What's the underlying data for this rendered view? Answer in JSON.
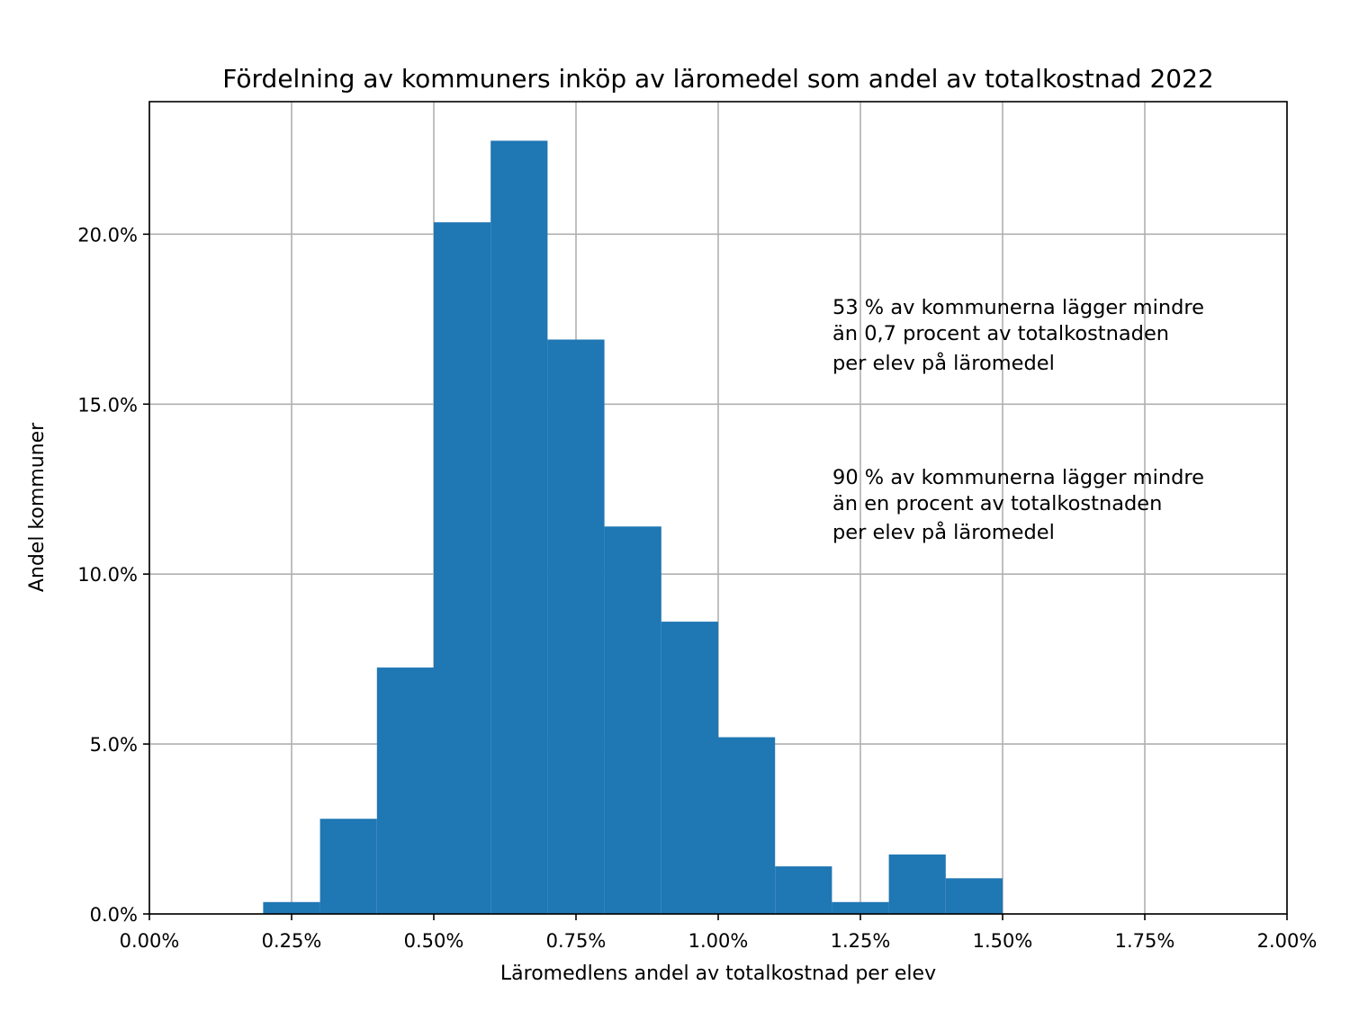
{
  "chart_data": {
    "type": "bar",
    "title": "Fördelning av kommuners inköp av läromedel som andel av totalkostnad 2022",
    "xlabel": "Läromedlens andel av totalkostnad per elev",
    "ylabel": "Andel kommuner",
    "xlim": [
      0.0,
      2.0
    ],
    "ylim": [
      0.0,
      23.9
    ],
    "grid": true,
    "bar_color": "#1f77b4",
    "x_ticks": [
      {
        "value": 0.0,
        "label": "0.00%"
      },
      {
        "value": 0.25,
        "label": "0.25%"
      },
      {
        "value": 0.5,
        "label": "0.50%"
      },
      {
        "value": 0.75,
        "label": "0.75%"
      },
      {
        "value": 1.0,
        "label": "1.00%"
      },
      {
        "value": 1.25,
        "label": "1.25%"
      },
      {
        "value": 1.5,
        "label": "1.50%"
      },
      {
        "value": 1.75,
        "label": "1.75%"
      },
      {
        "value": 2.0,
        "label": "2.00%"
      }
    ],
    "y_ticks": [
      {
        "value": 0,
        "label": "0.0%"
      },
      {
        "value": 5,
        "label": "5.0%"
      },
      {
        "value": 10,
        "label": "10.0%"
      },
      {
        "value": 15,
        "label": "15.0%"
      },
      {
        "value": 20,
        "label": "20.0%"
      }
    ],
    "bins": [
      {
        "start": 0.2,
        "end": 0.3,
        "value": 0.35
      },
      {
        "start": 0.3,
        "end": 0.4,
        "value": 2.8
      },
      {
        "start": 0.4,
        "end": 0.5,
        "value": 7.25
      },
      {
        "start": 0.5,
        "end": 0.6,
        "value": 20.35
      },
      {
        "start": 0.6,
        "end": 0.7,
        "value": 22.75
      },
      {
        "start": 0.7,
        "end": 0.8,
        "value": 16.9
      },
      {
        "start": 0.8,
        "end": 0.9,
        "value": 11.4
      },
      {
        "start": 0.9,
        "end": 1.0,
        "value": 8.6
      },
      {
        "start": 1.0,
        "end": 1.1,
        "value": 5.2
      },
      {
        "start": 1.1,
        "end": 1.2,
        "value": 1.4
      },
      {
        "start": 1.2,
        "end": 1.3,
        "value": 0.35
      },
      {
        "start": 1.3,
        "end": 1.4,
        "value": 1.75
      },
      {
        "start": 1.4,
        "end": 1.5,
        "value": 1.05
      }
    ],
    "annotations": [
      {
        "lines": [
          "53 % av kommunerna lägger mindre",
          "än 0,7 procent av totalkostnaden",
          "per elev på läromedel"
        ]
      },
      {
        "lines": [
          "90 % av kommunerna lägger mindre",
          "än en procent av totalkostnaden",
          "per elev på läromedel"
        ]
      }
    ]
  }
}
